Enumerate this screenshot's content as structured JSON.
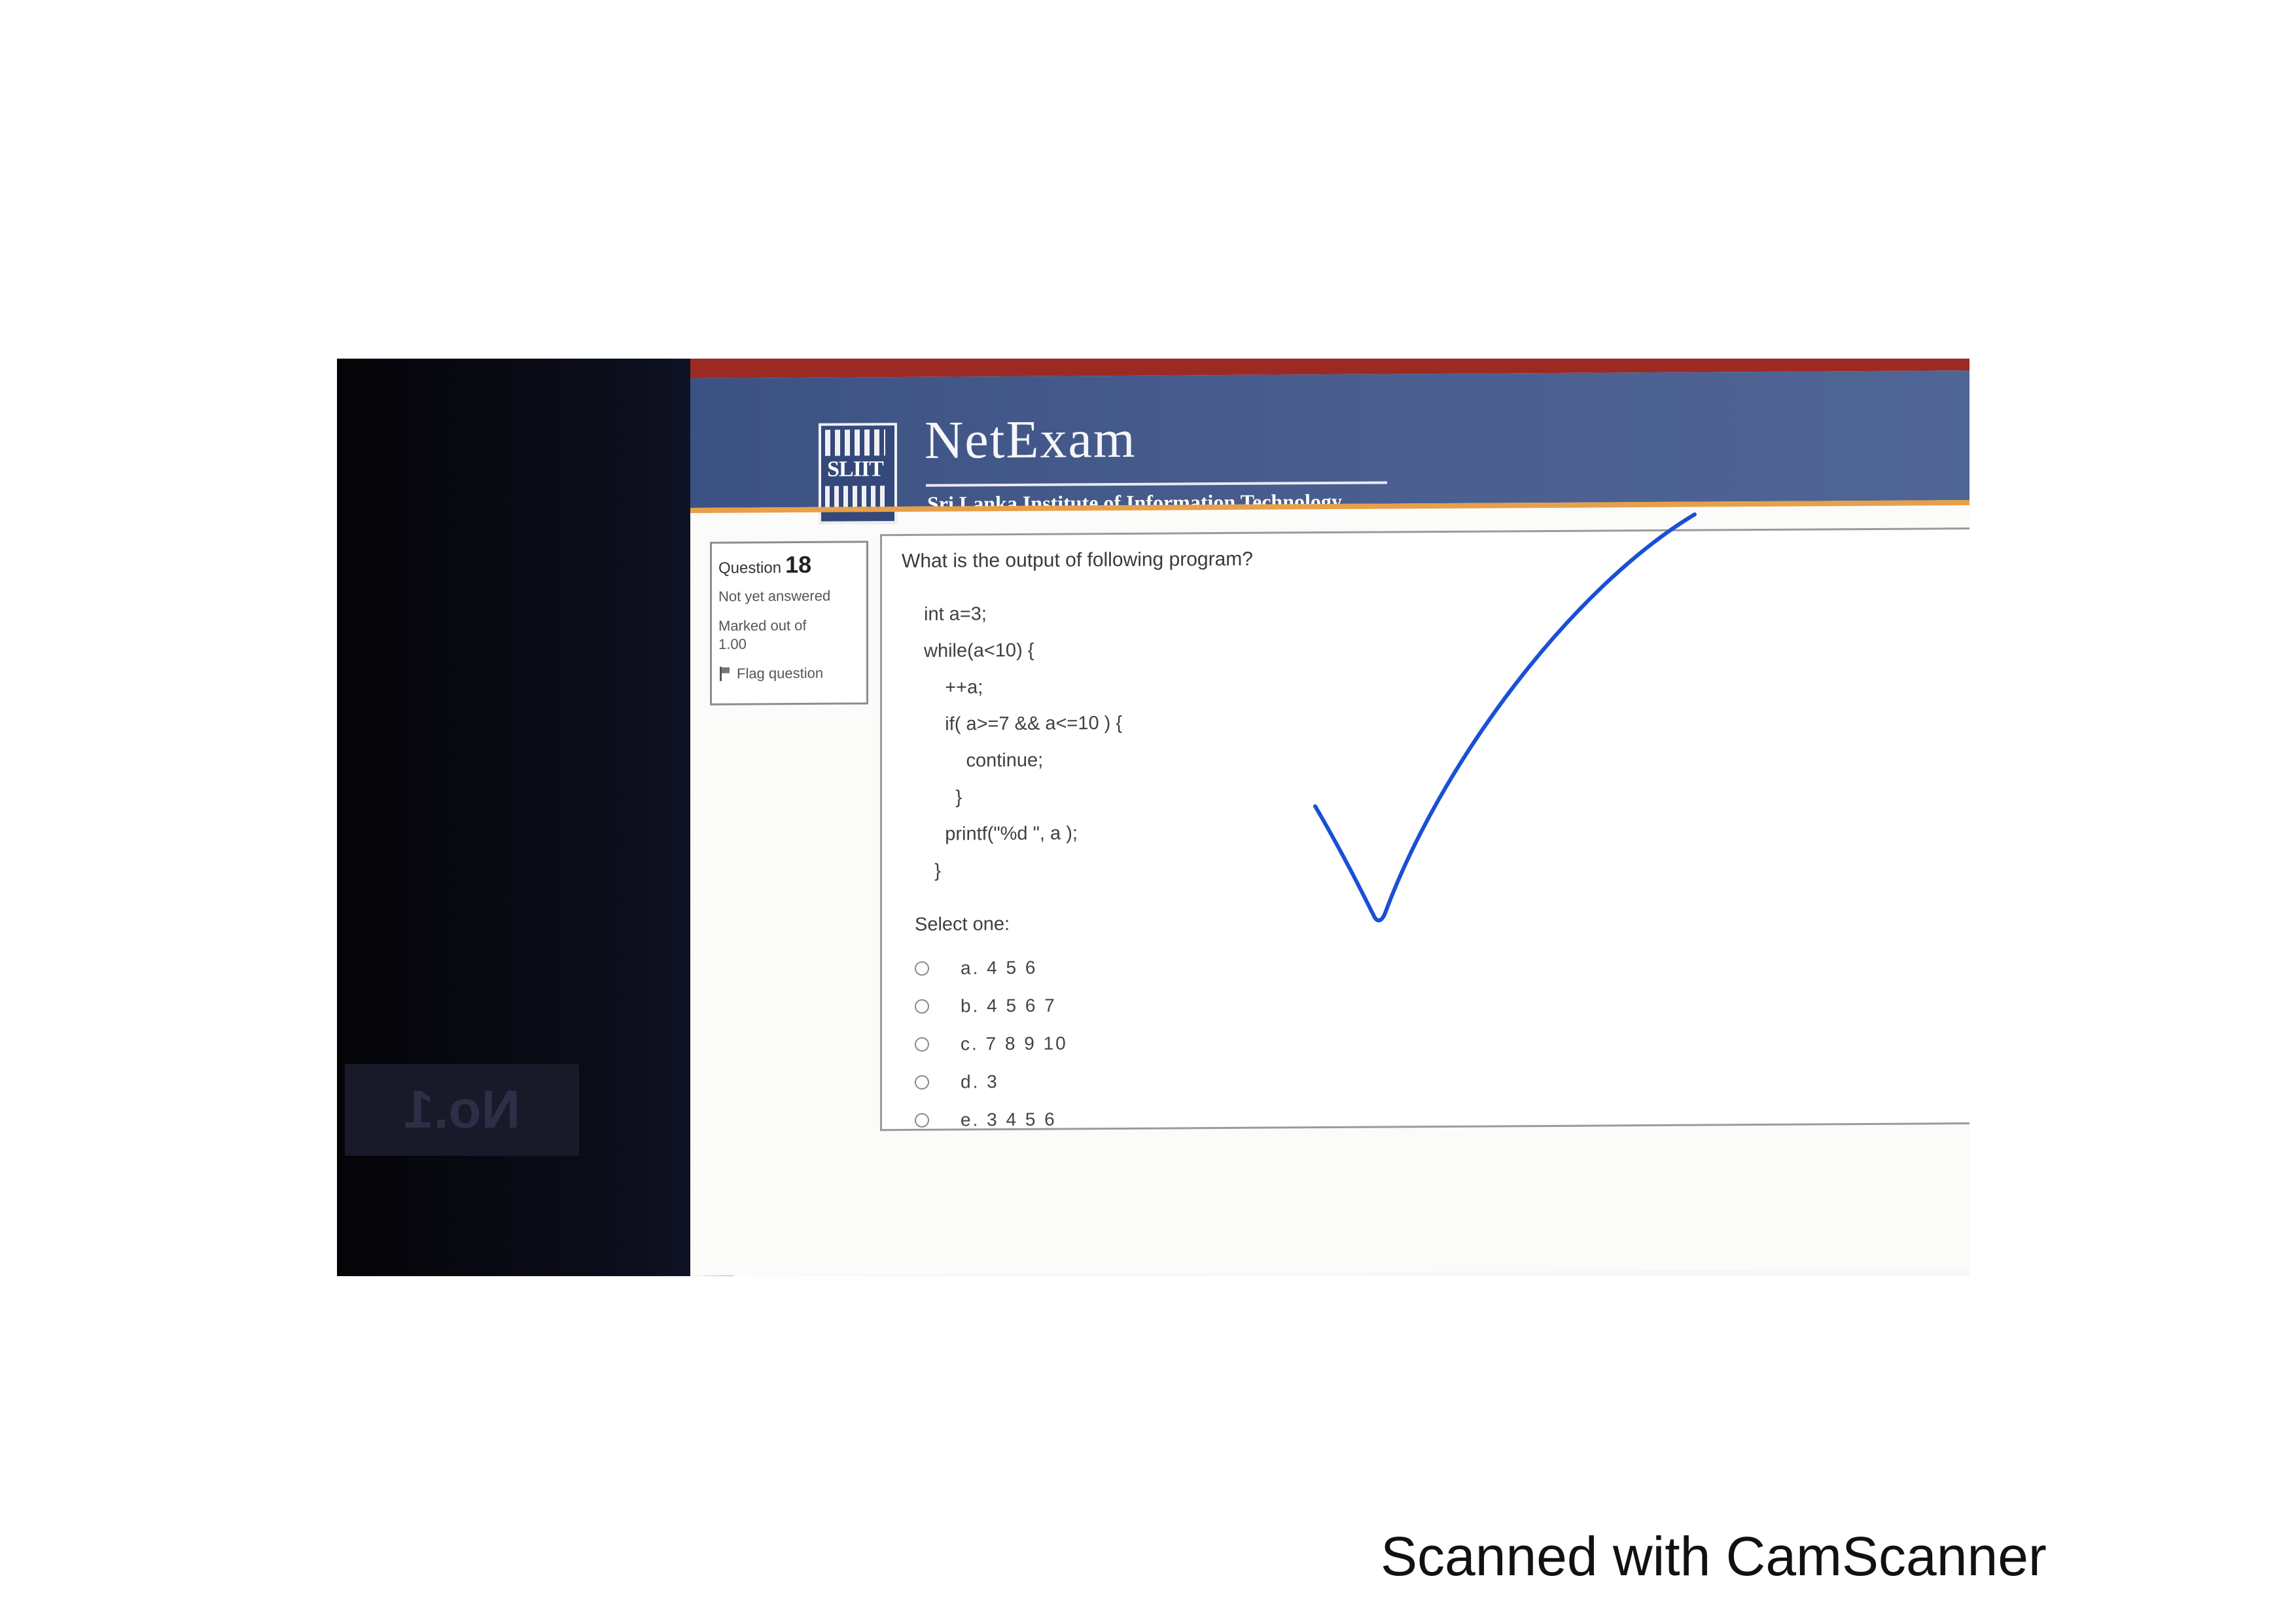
{
  "banner": {
    "logo_text": "SLIIT",
    "app_name": "NetExam",
    "institute": "Sri Lanka Institute of Information Technology"
  },
  "question_info": {
    "label": "Question",
    "number": "18",
    "status": "Not yet answered",
    "marked_out_of": "Marked out of",
    "marks": "1.00",
    "flag_label": "Flag question"
  },
  "question": {
    "text": "What is the output of following program?",
    "code_lines": [
      "int a=3;",
      "while(a<10) {",
      "    ++a;",
      "    if( a>=7 && a<=10 ) {",
      "        continue;",
      "      }",
      "    printf(\"%d \", a );",
      "  }"
    ],
    "select_label": "Select one:",
    "options": [
      "a. 4 5 6",
      "b. 4 5 6 7",
      "c. 7 8 9 10",
      "d. 3",
      "e. 3 4 5 6"
    ]
  },
  "background_label": "No.1",
  "annotation": {
    "checkmark_color": "#1a4fd6",
    "drawn": "checkmark"
  },
  "footer": {
    "text": "Scanned with CamScanner"
  }
}
